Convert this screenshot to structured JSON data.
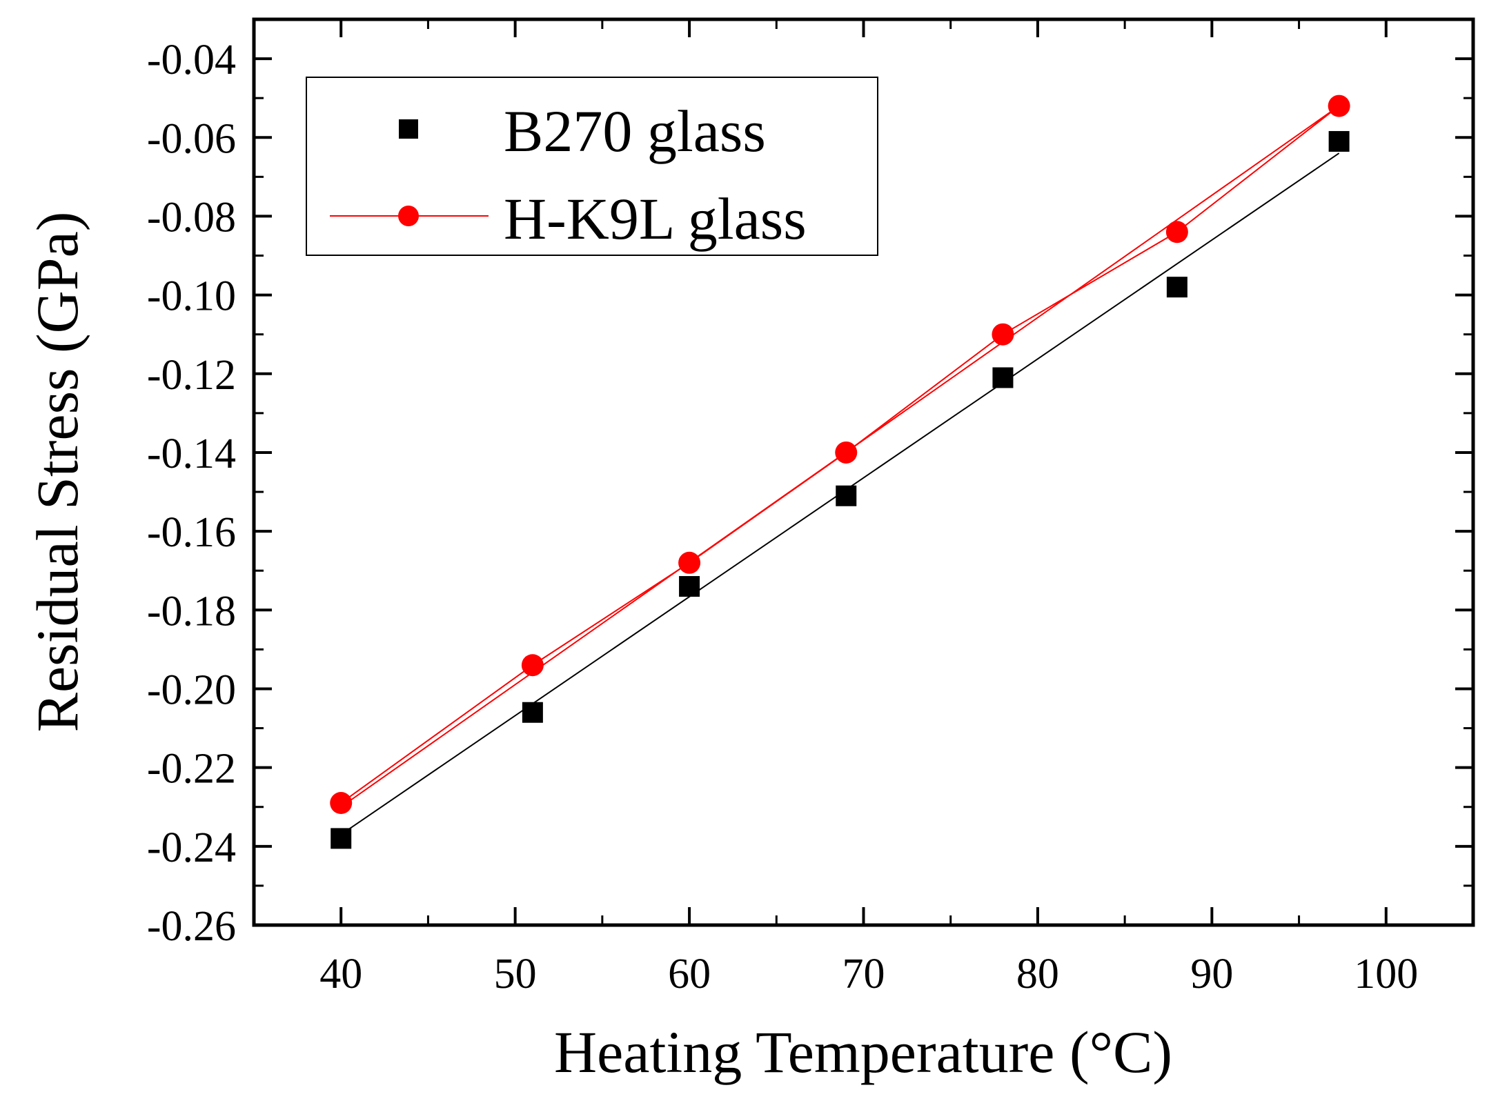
{
  "chart_data": {
    "type": "scatter",
    "title": "",
    "xlabel": "Heating Temperature (°C)",
    "ylabel": "Residual Stress (GPa)",
    "xlim": [
      35,
      105
    ],
    "ylim": [
      -0.26,
      -0.03
    ],
    "xticks": [
      40,
      50,
      60,
      70,
      80,
      90,
      100
    ],
    "xtick_labels": [
      "40",
      "50",
      "60",
      "70",
      "80",
      "90",
      "100"
    ],
    "yticks": [
      -0.26,
      -0.24,
      -0.22,
      -0.2,
      -0.18,
      -0.16,
      -0.14,
      -0.12,
      -0.1,
      -0.08,
      -0.06,
      -0.04
    ],
    "ytick_labels": [
      "-0.26",
      "-0.24",
      "-0.22",
      "-0.20",
      "-0.18",
      "-0.16",
      "-0.14",
      "-0.12",
      "-0.10",
      "-0.08",
      "-0.06",
      "-0.04"
    ],
    "grid": false,
    "legend_position": "top-left",
    "series": [
      {
        "name": "B270 glass",
        "marker": "square",
        "color": "#000000",
        "connect_points": false,
        "x": [
          40,
          51,
          60,
          69,
          78,
          88,
          97.3
        ],
        "y": [
          -0.238,
          -0.206,
          -0.174,
          -0.151,
          -0.121,
          -0.098,
          -0.061
        ],
        "fit_line": {
          "x": [
            40,
            97.3
          ],
          "y": [
            -0.237,
            -0.064
          ]
        }
      },
      {
        "name": "H-K9L glass",
        "marker": "circle",
        "color": "#ff0000",
        "connect_points": true,
        "x": [
          40,
          51,
          60,
          69,
          78,
          88,
          97.3
        ],
        "y": [
          -0.229,
          -0.194,
          -0.168,
          -0.14,
          -0.11,
          -0.084,
          -0.052
        ],
        "fit_line": {
          "x": [
            40,
            97.3
          ],
          "y": [
            -0.23,
            -0.052
          ]
        }
      }
    ]
  }
}
